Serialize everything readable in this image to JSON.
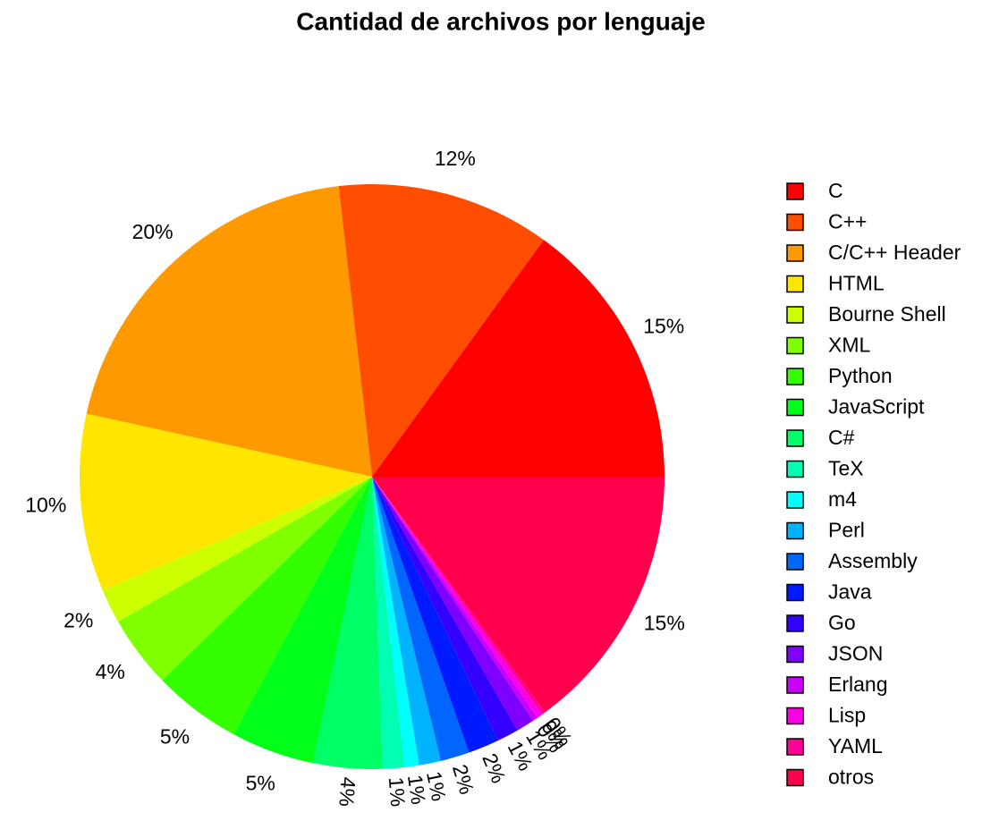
{
  "chart_data": {
    "type": "pie",
    "title": "Cantidad de archivos por lenguaje",
    "categories": [
      "C",
      "C++",
      "C/C++ Header",
      "HTML",
      "Bourne Shell",
      "XML",
      "Python",
      "JavaScript",
      "C#",
      "TeX",
      "m4",
      "Perl",
      "Assembly",
      "Java",
      "Go",
      "JSON",
      "Erlang",
      "Lisp",
      "YAML",
      "otros"
    ],
    "values": [
      15.0,
      11.8,
      19.7,
      9.8,
      1.9,
      4.0,
      4.9,
      4.6,
      3.8,
      1.2,
      0.8,
      1.2,
      1.6,
      1.7,
      1.2,
      1.0,
      0.3,
      0.3,
      0.2,
      14.9
    ],
    "value_labels": [
      "15%",
      "12%",
      "20%",
      "10%",
      "2%",
      "4%",
      "5%",
      "5%",
      "4%",
      "1%",
      "1%",
      "1%",
      "2%",
      "2%",
      "1%",
      "1%",
      "0%",
      "0%",
      "0%",
      "15%"
    ],
    "colors": [
      "#FF0000",
      "#FF4D00",
      "#FF9900",
      "#FFE500",
      "#CCFF00",
      "#80FF00",
      "#33FF00",
      "#00FF19",
      "#00FF66",
      "#00FFB2",
      "#00FFFF",
      "#00B3FF",
      "#0066FF",
      "#001AFF",
      "#3300FF",
      "#7F00FF",
      "#CC00FF",
      "#FF00E6",
      "#FF0099",
      "#FF004D"
    ],
    "legend": "right"
  }
}
